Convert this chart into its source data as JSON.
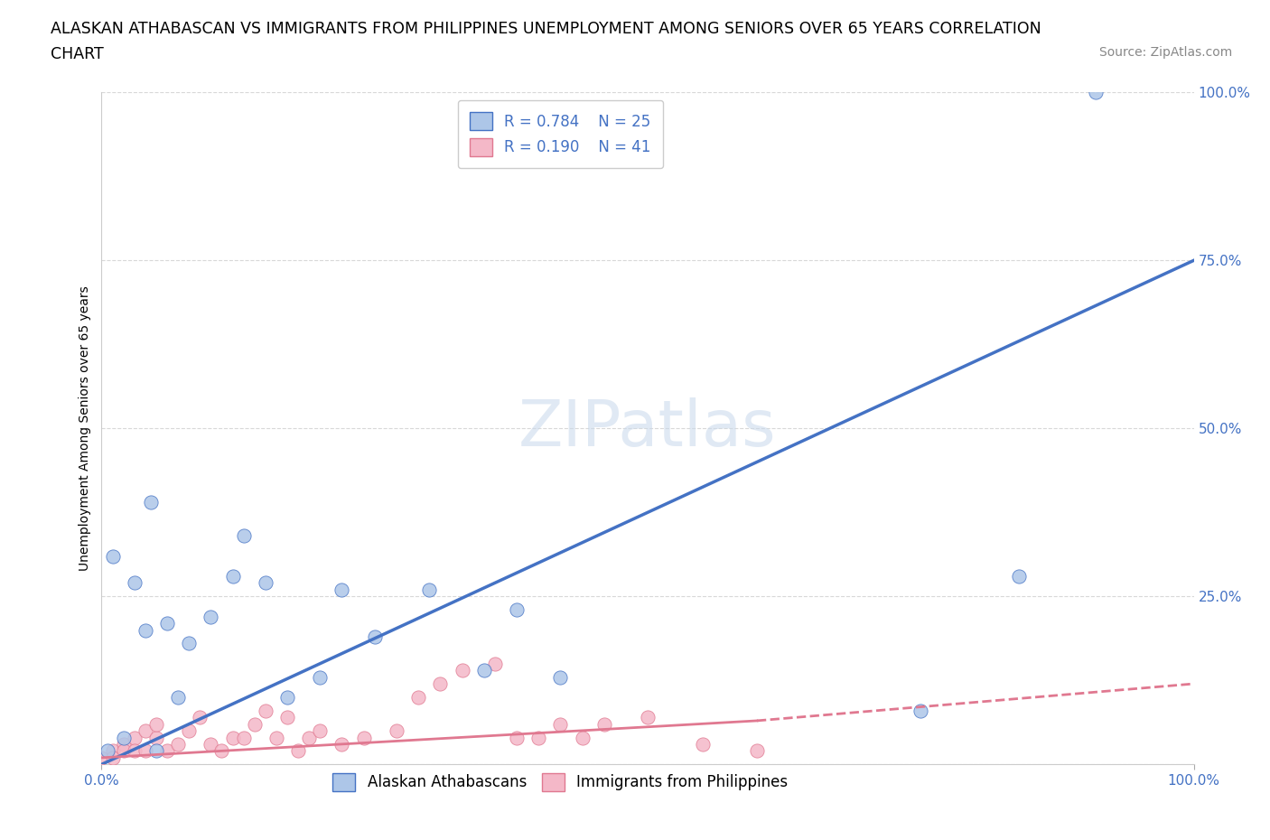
{
  "title_line1": "ALASKAN ATHABASCAN VS IMMIGRANTS FROM PHILIPPINES UNEMPLOYMENT AMONG SENIORS OVER 65 YEARS CORRELATION",
  "title_line2": "CHART",
  "source_text": "Source: ZipAtlas.com",
  "ylabel": "Unemployment Among Seniors over 65 years",
  "xlim": [
    0,
    1.0
  ],
  "ylim": [
    0,
    1.0
  ],
  "ytick_positions": [
    0.0,
    0.25,
    0.5,
    0.75,
    1.0
  ],
  "ytick_labels": [
    "",
    "25.0%",
    "50.0%",
    "75.0%",
    "100.0%"
  ],
  "xtick_positions": [
    0.0,
    1.0
  ],
  "xtick_labels": [
    "0.0%",
    "100.0%"
  ],
  "grid_color": "#d8d8d8",
  "grid_style": "--",
  "background_color": "#ffffff",
  "watermark": "ZIPatlas",
  "blue_R": 0.784,
  "blue_N": 25,
  "pink_R": 0.19,
  "pink_N": 41,
  "blue_color": "#adc6e8",
  "blue_line_color": "#4472c4",
  "pink_color": "#f4b8c8",
  "pink_line_color": "#e07890",
  "blue_scatter_x": [
    0.005,
    0.01,
    0.02,
    0.03,
    0.04,
    0.045,
    0.05,
    0.06,
    0.07,
    0.08,
    0.1,
    0.12,
    0.13,
    0.15,
    0.17,
    0.2,
    0.22,
    0.25,
    0.3,
    0.35,
    0.38,
    0.42,
    0.75,
    0.84,
    0.91
  ],
  "blue_scatter_y": [
    0.02,
    0.31,
    0.04,
    0.27,
    0.2,
    0.39,
    0.02,
    0.21,
    0.1,
    0.18,
    0.22,
    0.28,
    0.34,
    0.27,
    0.1,
    0.13,
    0.26,
    0.19,
    0.26,
    0.14,
    0.23,
    0.13,
    0.08,
    0.28,
    1.0
  ],
  "pink_scatter_x": [
    0.0,
    0.01,
    0.01,
    0.02,
    0.02,
    0.03,
    0.03,
    0.04,
    0.04,
    0.05,
    0.05,
    0.06,
    0.07,
    0.08,
    0.09,
    0.1,
    0.11,
    0.12,
    0.13,
    0.14,
    0.15,
    0.16,
    0.17,
    0.18,
    0.19,
    0.2,
    0.22,
    0.24,
    0.27,
    0.29,
    0.31,
    0.33,
    0.36,
    0.38,
    0.4,
    0.42,
    0.44,
    0.46,
    0.5,
    0.55,
    0.6
  ],
  "pink_scatter_y": [
    0.01,
    0.02,
    0.01,
    0.03,
    0.02,
    0.04,
    0.02,
    0.05,
    0.02,
    0.04,
    0.06,
    0.02,
    0.03,
    0.05,
    0.07,
    0.03,
    0.02,
    0.04,
    0.04,
    0.06,
    0.08,
    0.04,
    0.07,
    0.02,
    0.04,
    0.05,
    0.03,
    0.04,
    0.05,
    0.1,
    0.12,
    0.14,
    0.15,
    0.04,
    0.04,
    0.06,
    0.04,
    0.06,
    0.07,
    0.03,
    0.02
  ],
  "blue_line_x0": 0.0,
  "blue_line_y0": 0.0,
  "blue_line_x1": 1.0,
  "blue_line_y1": 0.75,
  "pink_line_solid_x0": 0.0,
  "pink_line_solid_y0": 0.01,
  "pink_line_solid_x1": 0.6,
  "pink_line_solid_y1": 0.065,
  "pink_line_dash_x1": 1.0,
  "pink_line_dash_y1": 0.12,
  "legend_blue_label": "Alaskan Athabascans",
  "legend_pink_label": "Immigrants from Philippines",
  "title_fontsize": 12.5,
  "axis_label_fontsize": 10,
  "tick_fontsize": 11,
  "legend_fontsize": 12,
  "source_fontsize": 10,
  "watermark_fontsize": 52,
  "marker_size": 120
}
